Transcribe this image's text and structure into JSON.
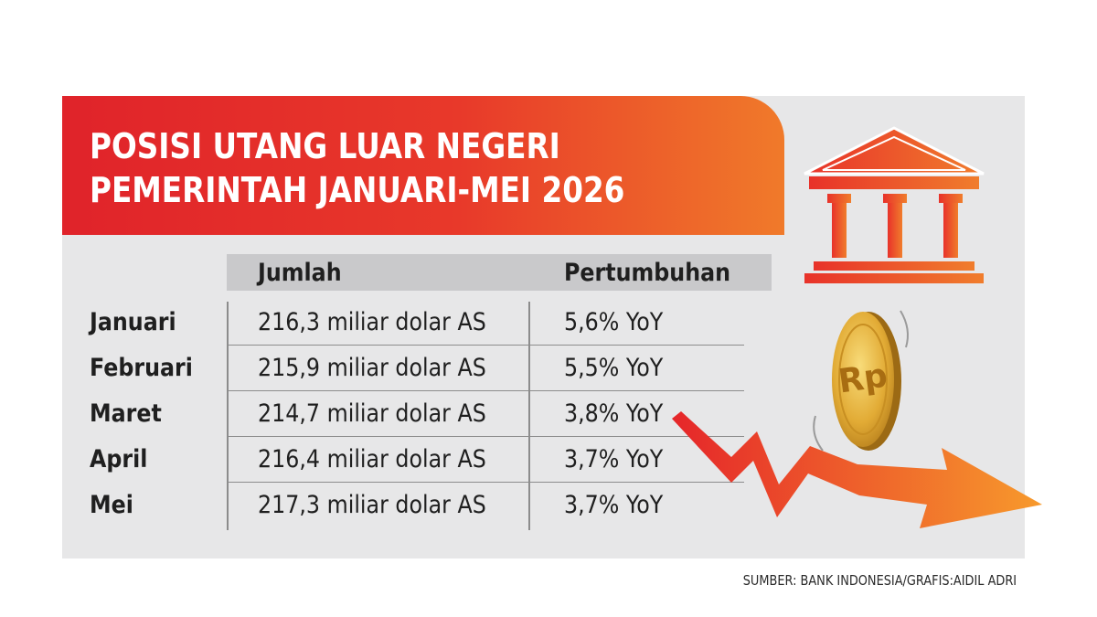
{
  "title": {
    "line1": "POSISI UTANG LUAR NEGERI",
    "line2": "PEMERINTAH JANUARI-MEI 2026"
  },
  "columns": {
    "amount": "Jumlah",
    "growth": "Pertumbuhan"
  },
  "rows": [
    {
      "month": "Januari",
      "amount": "216,3 miliar dolar AS",
      "growth": "5,6% YoY"
    },
    {
      "month": "Februari",
      "amount": "215,9 miliar dolar AS",
      "growth": "5,5% YoY"
    },
    {
      "month": "Maret",
      "amount": "214,7 miliar dolar AS",
      "growth": "3,8% YoY"
    },
    {
      "month": "April",
      "amount": "216,4 miliar dolar AS",
      "growth": "3,7% YoY"
    },
    {
      "month": "Mei",
      "amount": "217,3 miliar dolar AS",
      "growth": "3,7% YoY"
    }
  ],
  "coin_label": "Rp",
  "source": "SUMBER: BANK INDONESIA/GRAFIS:AIDIL ADRI",
  "colors": {
    "banner_red": "#e0232a",
    "banner_orange": "#f07a2a",
    "panel_gray": "#e7e7e8",
    "header_gray": "#c9c9cb",
    "coin_gold": "#e0a92e"
  },
  "icons": [
    "bank-building-icon",
    "rupiah-coin-icon",
    "downtrend-arrow-icon"
  ],
  "chart_data": {
    "type": "table",
    "title": "POSISI UTANG LUAR NEGERI PEMERINTAH JANUARI-MEI 2026",
    "columns": [
      "",
      "Jumlah",
      "Pertumbuhan"
    ],
    "categories": [
      "Januari",
      "Februari",
      "Maret",
      "April",
      "Mei"
    ],
    "series": [
      {
        "name": "Jumlah",
        "unit": "miliar dolar AS",
        "values": [
          216.3,
          215.9,
          214.7,
          216.4,
          217.3
        ]
      },
      {
        "name": "Pertumbuhan",
        "unit": "% YoY",
        "values": [
          5.6,
          5.5,
          3.8,
          3.7,
          3.7
        ]
      }
    ]
  }
}
